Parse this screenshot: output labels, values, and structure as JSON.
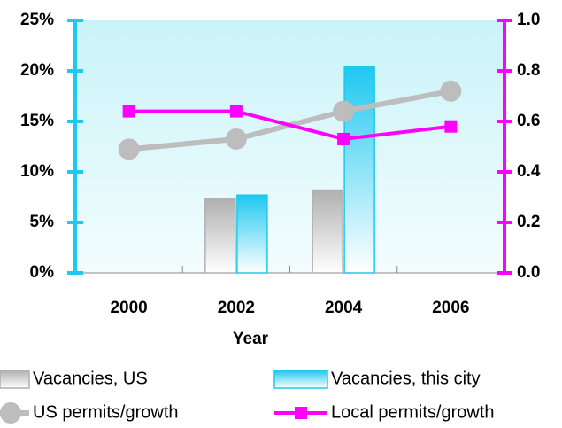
{
  "chart_data": {
    "type": "bar",
    "x_label": "Year",
    "categories": [
      "2000",
      "2002",
      "2004",
      "2006"
    ],
    "series": [
      {
        "name": "Vacancies, US",
        "type": "bar",
        "color": "#b0b0b0",
        "values": [
          0,
          7.3,
          8.2,
          0
        ]
      },
      {
        "name": "Vacancies, this city",
        "type": "bar",
        "color": "#1ec8f0",
        "values": [
          0,
          7.7,
          20.4,
          0
        ]
      },
      {
        "name": "US permits/growth",
        "type": "line",
        "axis": "y2",
        "color": "#bdbdbd",
        "marker": "circle",
        "values": [
          0.49,
          0.53,
          0.64,
          0.72
        ]
      },
      {
        "name": "Local permits/growth",
        "type": "line",
        "axis": "y2",
        "color": "#ff00ff",
        "marker": "square",
        "values": [
          0.64,
          0.64,
          0.53,
          0.58
        ]
      }
    ],
    "ylim": [
      0,
      25
    ],
    "yticks": [
      {
        "value": 0,
        "label": "0%"
      },
      {
        "value": 5,
        "label": "5%"
      },
      {
        "value": 10,
        "label": "10%"
      },
      {
        "value": 15,
        "label": "15%"
      },
      {
        "value": 20,
        "label": "20%"
      },
      {
        "value": 25,
        "label": "25%"
      }
    ],
    "y_color": "#1ec8f0",
    "y2lim": [
      0,
      1
    ],
    "y2ticks": [
      {
        "value": 0,
        "label": "0.0"
      },
      {
        "value": 0.2,
        "label": "0.2"
      },
      {
        "value": 0.4,
        "label": "0.4"
      },
      {
        "value": 0.6,
        "label": "0.6"
      },
      {
        "value": 0.8,
        "label": "0.8"
      },
      {
        "value": 1,
        "label": "1.0"
      }
    ],
    "y2_color": "#ff00ff"
  }
}
